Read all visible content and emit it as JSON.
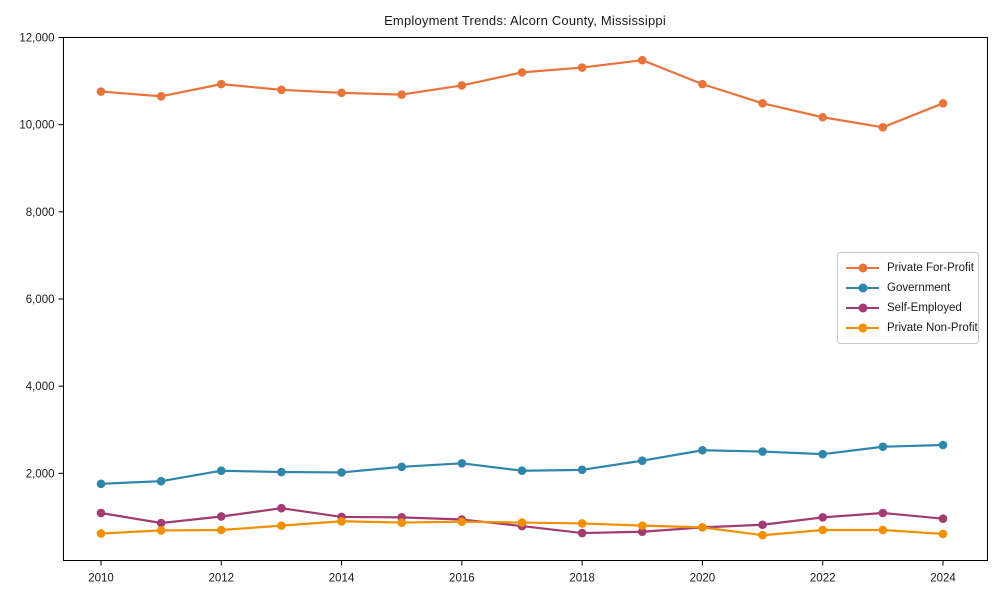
{
  "chart_data": {
    "type": "line",
    "title": "Employment Trends: Alcorn County, Mississippi",
    "xlabel": "",
    "ylabel": "",
    "x": [
      2010,
      2011,
      2012,
      2013,
      2014,
      2015,
      2016,
      2017,
      2018,
      2019,
      2020,
      2021,
      2022,
      2023,
      2024
    ],
    "xticks": [
      2010,
      2012,
      2014,
      2016,
      2018,
      2020,
      2022,
      2024
    ],
    "yticks": [
      2000,
      4000,
      6000,
      8000,
      10000,
      12000
    ],
    "ytick_labels": [
      "2,000",
      "4,000",
      "6,000",
      "8,000",
      "10,000",
      "12,000"
    ],
    "ylim": [
      0,
      12000
    ],
    "grid": false,
    "legend_position": "center right",
    "marker": "circle",
    "series": [
      {
        "name": "Private For-Profit",
        "color": "#E8743B",
        "values": [
          10760,
          10650,
          10930,
          10800,
          10730,
          10690,
          10900,
          11200,
          11310,
          11480,
          10930,
          10490,
          10170,
          9940,
          10490
        ]
      },
      {
        "name": "Government",
        "color": "#2E86AB",
        "values": [
          1760,
          1820,
          2060,
          2030,
          2020,
          2150,
          2230,
          2060,
          2080,
          2290,
          2530,
          2500,
          2440,
          2610,
          2650
        ]
      },
      {
        "name": "Self-Employed",
        "color": "#A23B72",
        "values": [
          1090,
          860,
          1010,
          1200,
          1000,
          990,
          940,
          790,
          630,
          660,
          760,
          820,
          990,
          1090,
          960
        ]
      },
      {
        "name": "Private Non-Profit",
        "color": "#F18F01",
        "values": [
          620,
          690,
          700,
          800,
          900,
          870,
          890,
          870,
          850,
          800,
          760,
          580,
          700,
          700,
          610
        ]
      }
    ]
  }
}
